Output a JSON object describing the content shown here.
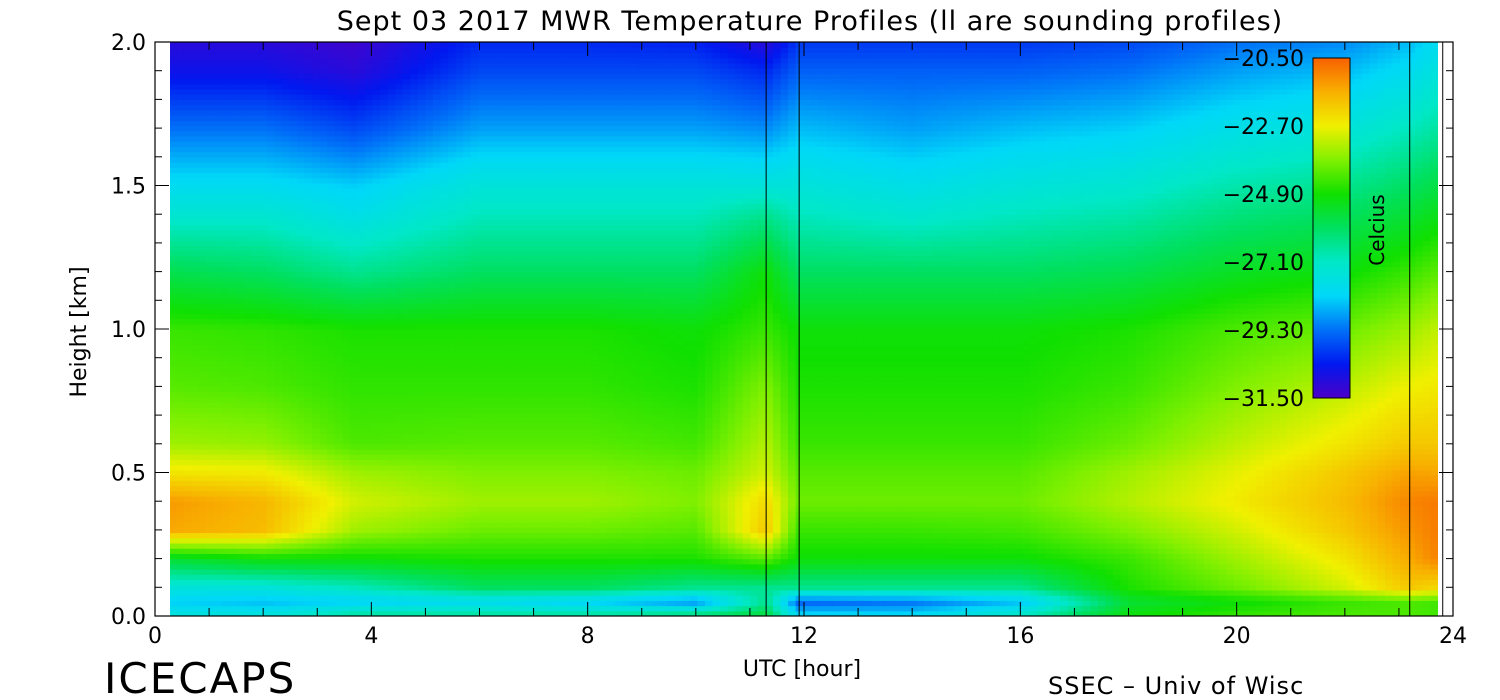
{
  "title": "Sept 03 2017 MWR Temperature Profiles (ll are sounding profiles)",
  "footer_left": "ICECAPS",
  "footer_right": "SSEC – Univ of Wisc",
  "colors": {
    "palette": [
      "#4b00c8",
      "#0018f0",
      "#0070f8",
      "#00d8f8",
      "#00e8c8",
      "#00e060",
      "#10e000",
      "#80f000",
      "#f0f000",
      "#f8b000",
      "#f86000"
    ]
  },
  "chart_data": {
    "type": "heatmap",
    "title": "Sept 03 2017 MWR Temperature Profiles (ll are sounding profiles)",
    "xlabel": "UTC [hour]",
    "ylabel": "Height [km]",
    "xlim": [
      0,
      24
    ],
    "ylim": [
      0,
      2
    ],
    "x_ticks": [
      0,
      4,
      8,
      12,
      16,
      20,
      24
    ],
    "x_tick_labels": [
      "0",
      "4",
      "8",
      "12",
      "16",
      "20",
      "24"
    ],
    "y_ticks": [
      0,
      0.5,
      1,
      1.5,
      2
    ],
    "y_tick_labels": [
      "0.0",
      "0.5",
      "1.0",
      "1.5",
      "2.0"
    ],
    "colorbar": {
      "label": "Celcius",
      "min": -31.5,
      "max": -20.5,
      "tick_labels": [
        "-20.50",
        "-22.70",
        "-24.90",
        "-27.10",
        "-29.30",
        "-31.50"
      ]
    },
    "sounding_profiles_hours": [
      11.3,
      23.2
    ],
    "heights_km": [
      0.0,
      0.05,
      0.1,
      0.2,
      0.3,
      0.4,
      0.5,
      0.6,
      0.8,
      1.0,
      1.2,
      1.4,
      1.5,
      1.7,
      1.9,
      2.0
    ],
    "times_hours": [
      0.25,
      2,
      3.7,
      6,
      8,
      10,
      11.3,
      11.9,
      14,
      16,
      18,
      20,
      22,
      23.2,
      24
    ],
    "temperatures_c": [
      [
        -27.5,
        -28.3,
        -27.5,
        -25.5,
        -21.5,
        -21.3,
        -22.5,
        -23.5,
        -24.2,
        -24.5,
        -25.8,
        -27.3,
        -28.0,
        -29.3,
        -30.6,
        -31.0
      ],
      [
        -27.5,
        -28.5,
        -27.5,
        -25.0,
        -21.8,
        -21.7,
        -22.6,
        -23.6,
        -24.3,
        -24.6,
        -26.0,
        -27.3,
        -28.0,
        -29.3,
        -30.6,
        -31.0
      ],
      [
        -26.5,
        -28.3,
        -27.0,
        -25.0,
        -23.5,
        -23.0,
        -23.5,
        -24.3,
        -24.6,
        -24.8,
        -26.5,
        -27.8,
        -28.3,
        -29.8,
        -31.0,
        -31.3
      ],
      [
        -26.5,
        -28.0,
        -26.0,
        -24.8,
        -24.0,
        -23.5,
        -23.8,
        -24.2,
        -24.6,
        -24.8,
        -26.0,
        -27.0,
        -27.5,
        -28.8,
        -29.8,
        -30.2
      ],
      [
        -26.5,
        -28.3,
        -26.0,
        -24.8,
        -24.0,
        -23.5,
        -23.8,
        -24.2,
        -24.6,
        -24.8,
        -26.0,
        -27.0,
        -27.5,
        -28.8,
        -29.8,
        -30.2
      ],
      [
        -26.0,
        -29.0,
        -26.5,
        -24.8,
        -24.2,
        -23.8,
        -24.0,
        -24.4,
        -24.8,
        -25.0,
        -26.0,
        -27.0,
        -27.5,
        -28.8,
        -29.8,
        -30.3
      ],
      [
        -25.5,
        -26.5,
        -26.5,
        -24.2,
        -22.0,
        -22.3,
        -23.0,
        -23.3,
        -23.8,
        -24.5,
        -25.0,
        -26.5,
        -27.5,
        -29.0,
        -30.2,
        -31.0
      ],
      [
        -28.0,
        -29.5,
        -26.5,
        -25.0,
        -24.5,
        -24.0,
        -24.2,
        -24.5,
        -24.8,
        -25.0,
        -26.0,
        -27.0,
        -27.5,
        -28.5,
        -29.5,
        -30.0
      ],
      [
        -28.0,
        -29.3,
        -26.5,
        -25.0,
        -24.5,
        -24.0,
        -24.2,
        -24.5,
        -24.8,
        -25.0,
        -26.0,
        -27.3,
        -27.8,
        -28.8,
        -29.5,
        -30.0
      ],
      [
        -27.0,
        -28.5,
        -26.5,
        -25.0,
        -24.4,
        -24.0,
        -24.2,
        -24.5,
        -24.8,
        -25.0,
        -26.0,
        -27.0,
        -27.5,
        -28.5,
        -29.5,
        -30.0
      ],
      [
        -25.0,
        -25.5,
        -24.8,
        -24.5,
        -23.8,
        -23.3,
        -23.5,
        -24.0,
        -24.5,
        -24.8,
        -25.8,
        -26.8,
        -27.3,
        -28.3,
        -29.3,
        -29.8
      ],
      [
        -24.5,
        -25.0,
        -24.0,
        -23.5,
        -23.0,
        -22.6,
        -22.8,
        -23.2,
        -23.8,
        -24.3,
        -25.3,
        -26.3,
        -26.8,
        -27.8,
        -28.8,
        -29.3
      ],
      [
        -24.3,
        -24.5,
        -23.0,
        -22.5,
        -22.0,
        -21.8,
        -22.0,
        -22.5,
        -23.2,
        -24.0,
        -25.0,
        -26.0,
        -26.5,
        -27.5,
        -28.5,
        -29.0
      ],
      [
        -24.3,
        -24.3,
        -22.0,
        -21.5,
        -21.2,
        -21.0,
        -21.4,
        -22.0,
        -22.7,
        -23.5,
        -24.5,
        -25.5,
        -26.0,
        -27.0,
        -28.0,
        -28.5
      ],
      [
        -24.5,
        -24.5,
        -22.5,
        -20.7,
        -20.7,
        -20.8,
        -21.5,
        -22.0,
        -22.5,
        -23.0,
        -24.0,
        -25.0,
        -25.5,
        -26.5,
        -27.3,
        -27.7
      ]
    ]
  }
}
